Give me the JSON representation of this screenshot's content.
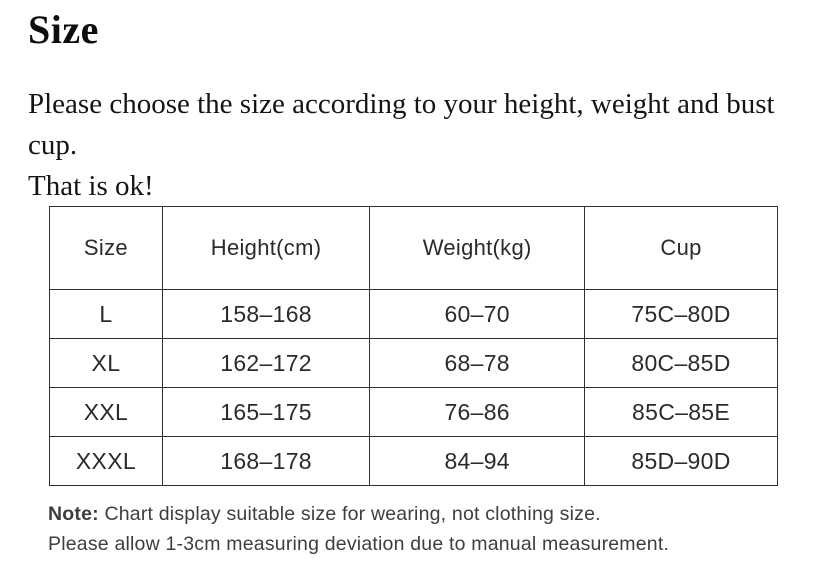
{
  "page": {
    "title": "Size",
    "intro_line1": "Please choose the size according to your height, weight and bust cup.",
    "intro_line2": "That is ok!"
  },
  "size_chart": {
    "columns": [
      "Size",
      "Height(cm)",
      "Weight(kg)",
      "Cup"
    ],
    "rows": [
      {
        "size": "L",
        "height_cm": "158–168",
        "weight_kg": "60–70",
        "cup": "75C–80D"
      },
      {
        "size": "XL",
        "height_cm": "162–172",
        "weight_kg": "68–78",
        "cup": "80C–85D"
      },
      {
        "size": "XXL",
        "height_cm": "165–175",
        "weight_kg": "76–86",
        "cup": "85C–85E"
      },
      {
        "size": "XXXL",
        "height_cm": "168–178",
        "weight_kg": "84–94",
        "cup": "85D–90D"
      }
    ],
    "note_label": "Note:",
    "note_line1": "Chart display suitable size for wearing, not clothing size.",
    "note_line2": "Please allow 1-3cm measuring deviation due to manual measurement."
  },
  "colors": {
    "background": "#ffffff",
    "text": "#111111",
    "table_text": "#2b2b2b",
    "note_text": "#3e3e3e",
    "border": "#2f2f2f"
  }
}
